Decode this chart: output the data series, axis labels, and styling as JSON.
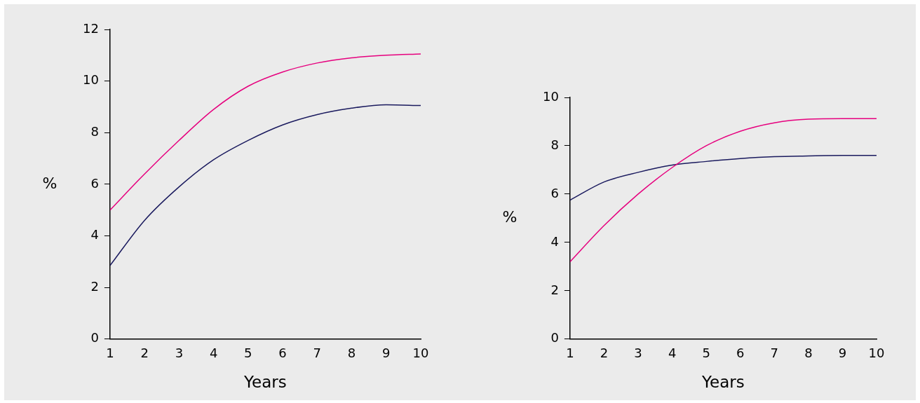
{
  "chart_data": [
    {
      "type": "line",
      "xlabel": "Years",
      "ylabel": "%",
      "xlim": [
        1,
        10
      ],
      "xticks": [
        1,
        2,
        3,
        4,
        5,
        6,
        7,
        8,
        9,
        10
      ],
      "ylim": [
        0,
        12
      ],
      "yticks": [
        0,
        2,
        4,
        6,
        8,
        10,
        12
      ],
      "x": [
        1,
        2,
        3,
        4,
        5,
        6,
        7,
        8,
        9,
        10
      ],
      "series": [
        {
          "color": "#e6007e",
          "values": [
            5.0,
            6.4,
            7.7,
            8.9,
            9.8,
            10.35,
            10.7,
            10.9,
            11.0,
            11.05
          ]
        },
        {
          "color": "#1a1a5e",
          "values": [
            2.85,
            4.6,
            5.9,
            6.95,
            7.7,
            8.3,
            8.7,
            8.95,
            9.08,
            9.05
          ]
        }
      ]
    },
    {
      "type": "line",
      "xlabel": "Years",
      "ylabel": "%",
      "xlim": [
        1,
        10
      ],
      "xticks": [
        1,
        2,
        3,
        4,
        5,
        6,
        7,
        8,
        9,
        10
      ],
      "ylim": [
        0,
        10
      ],
      "yticks": [
        0,
        2,
        4,
        6,
        8,
        10
      ],
      "x": [
        1,
        2,
        3,
        4,
        5,
        6,
        7,
        8,
        9,
        10
      ],
      "series": [
        {
          "color": "#e6007e",
          "values": [
            3.2,
            4.7,
            6.0,
            7.1,
            8.0,
            8.6,
            8.95,
            9.1,
            9.12,
            9.12
          ]
        },
        {
          "color": "#1a1a5e",
          "values": [
            5.75,
            6.5,
            6.9,
            7.2,
            7.35,
            7.47,
            7.55,
            7.58,
            7.6,
            7.6
          ]
        }
      ]
    }
  ]
}
